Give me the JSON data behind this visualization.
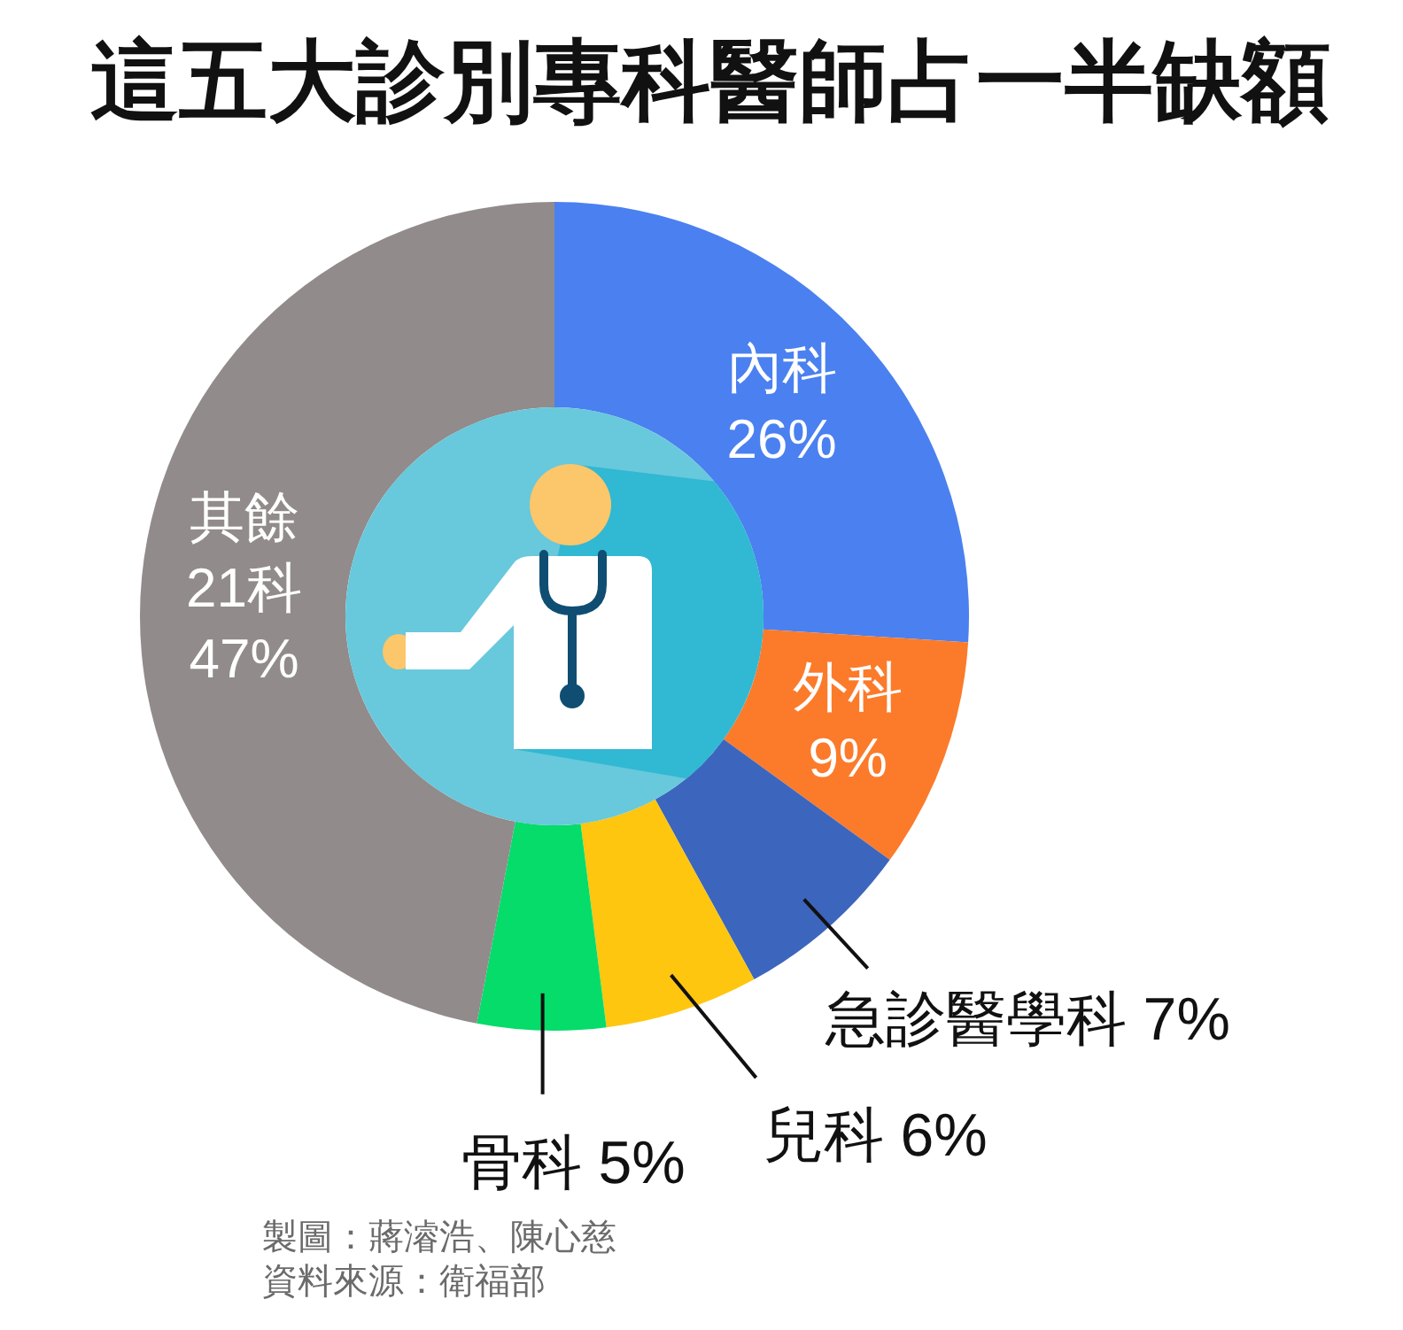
{
  "chart_data": {
    "type": "donut",
    "title": "這五大診別專科醫師占一半缺額",
    "categories": [
      "內科",
      "外科",
      "急診醫學科",
      "兒科",
      "骨科",
      "其餘 21科"
    ],
    "values": [
      26,
      9,
      7,
      6,
      5,
      47
    ],
    "colors": [
      "#4b80f0",
      "#fb7b2b",
      "#3c66bd",
      "#fec60f",
      "#05dc6a",
      "#918b8b"
    ],
    "value_labels": [
      "26%",
      "9%",
      "7%",
      "6%",
      "5%",
      "47%"
    ],
    "annotations": [
      "製圖：蔣濬浩、陳心慈",
      "資料來源：衛福部"
    ]
  }
}
